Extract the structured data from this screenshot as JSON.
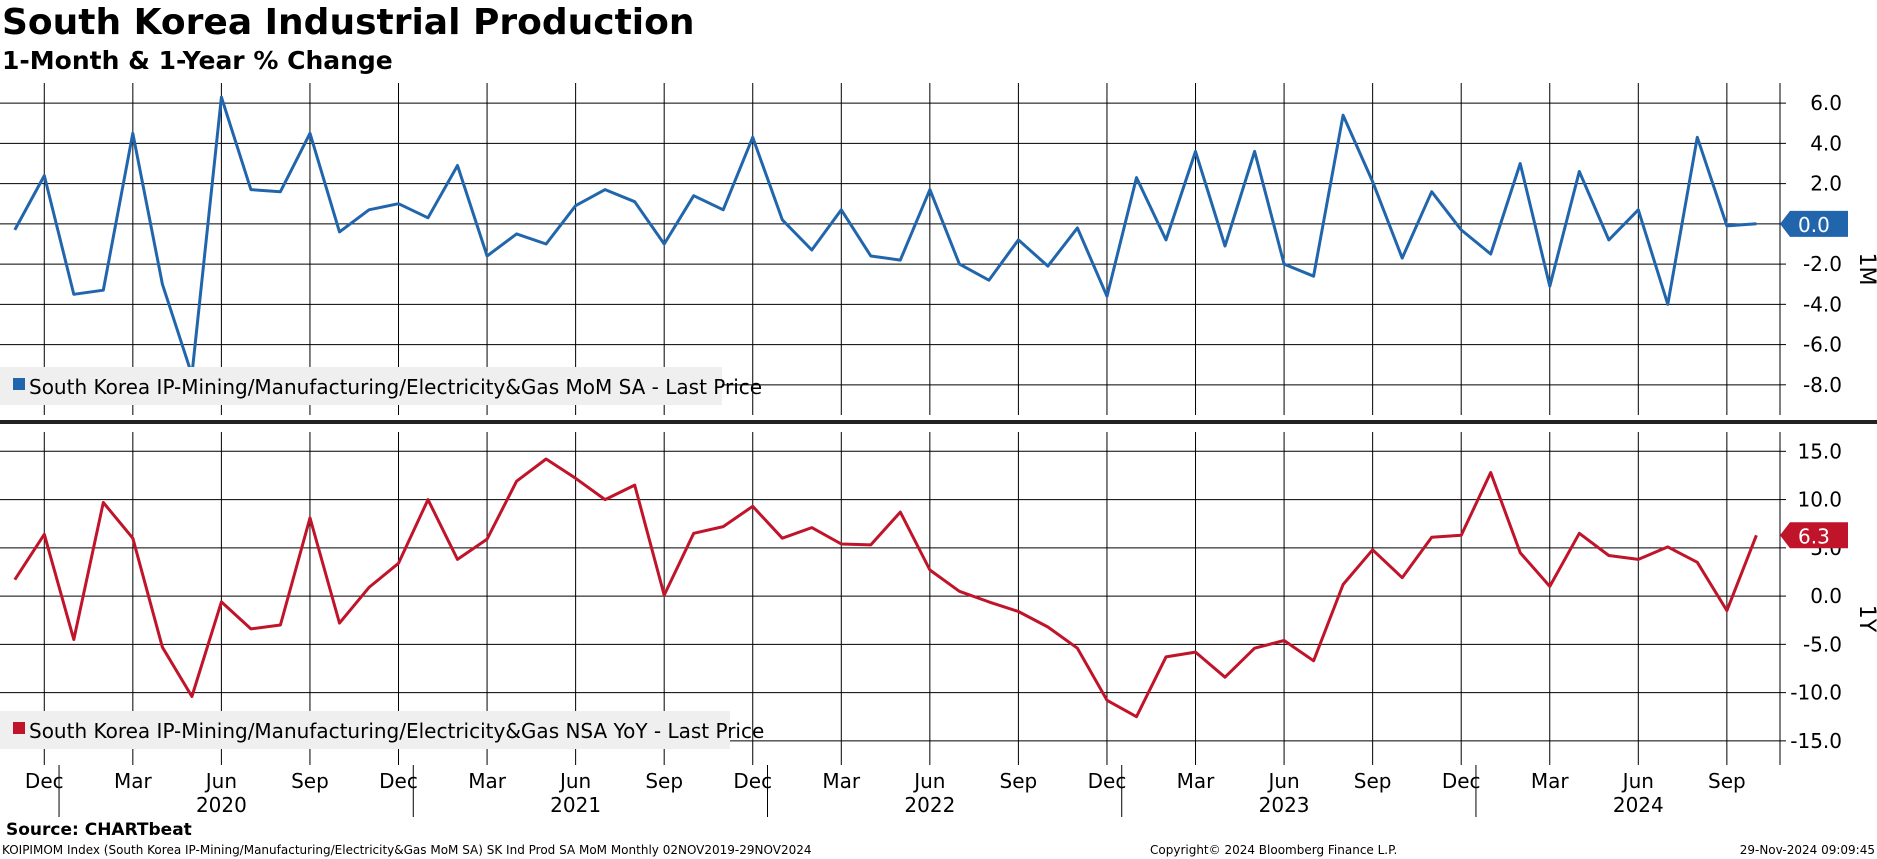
{
  "header": {
    "title": "South Korea Industrial Production",
    "subtitle": "1-Month & 1-Year % Change"
  },
  "footer": {
    "source": "Source: CHARTbeat",
    "index_info": "KOIPIMOM Index (South Korea IP-Mining/Manufacturing/Electricity&Gas MoM SA) SK Ind Prod SA MoM  Monthly 02NOV2019-29NOV2024",
    "copyright": "Copyright© 2024 Bloomberg Finance L.P.",
    "timestamp": "29-Nov-2024 09:09:45"
  },
  "colors": {
    "mom": "#2166ac",
    "yoy": "#c0142b",
    "grid": "#000000"
  },
  "chart_data": [
    {
      "type": "line",
      "panel": "top",
      "axis_label": "1M",
      "legend": "South Korea IP-Mining/Manufacturing/Electricity&Gas MoM SA - Last Price",
      "last_value_label": "0.0",
      "ylim": [
        -9.5,
        7.0
      ],
      "y_ticks": [
        6.0,
        4.0,
        2.0,
        0.0,
        -2.0,
        -4.0,
        -6.0,
        -8.0
      ],
      "y_tick_labels": [
        "6.0",
        "4.0",
        "2.0",
        "0.0",
        "-2.0",
        "-4.0",
        "-6.0",
        "-8.0"
      ],
      "x_start": "2019-11",
      "values": [
        -0.3,
        2.4,
        -3.5,
        -3.3,
        4.5,
        -3.0,
        -7.5,
        6.3,
        1.7,
        1.6,
        4.5,
        -0.4,
        0.7,
        1.0,
        0.3,
        2.9,
        -1.6,
        -0.5,
        -1.0,
        0.9,
        1.7,
        1.1,
        -1.0,
        1.4,
        0.7,
        4.3,
        0.2,
        -1.3,
        0.7,
        -1.6,
        -1.8,
        1.7,
        -2.0,
        -2.8,
        -0.8,
        -2.1,
        -0.2,
        -3.6,
        2.3,
        -0.8,
        3.6,
        -1.1,
        3.6,
        -2.0,
        -2.6,
        5.4,
        2.1,
        -1.7,
        1.6,
        -0.3,
        -1.5,
        3.0,
        -3.1,
        2.6,
        -0.8,
        0.7,
        -4.0,
        4.3,
        -0.1,
        0.0
      ]
    },
    {
      "type": "line",
      "panel": "bottom",
      "axis_label": "1Y",
      "legend": "South Korea IP-Mining/Manufacturing/Electricity&Gas NSA YoY - Last Price",
      "last_value_label": "6.3",
      "ylim": [
        -17.5,
        17.0
      ],
      "y_ticks": [
        15.0,
        10.0,
        5.0,
        0.0,
        -5.0,
        -10.0,
        -15.0
      ],
      "y_tick_labels": [
        "15.0",
        "10.0",
        "5.0",
        "0.0",
        "-5.0",
        "-10.0",
        "-15.0"
      ],
      "x_start": "2019-11",
      "values": [
        1.7,
        6.4,
        -4.5,
        9.7,
        6.0,
        -5.3,
        -10.4,
        -0.6,
        -3.4,
        -3.0,
        8.1,
        -2.8,
        0.9,
        3.4,
        10.0,
        3.8,
        5.9,
        11.9,
        14.2,
        12.2,
        10.0,
        11.5,
        0.1,
        6.5,
        7.2,
        9.3,
        6.0,
        7.1,
        5.4,
        5.3,
        8.7,
        2.7,
        0.5,
        -0.6,
        -1.6,
        -3.2,
        -5.4,
        -10.8,
        -12.5,
        -6.3,
        -5.8,
        -8.4,
        -5.4,
        -4.6,
        -6.7,
        1.2,
        4.8,
        1.9,
        6.1,
        6.3,
        12.8,
        4.5,
        1.0,
        6.5,
        4.2,
        3.8,
        5.1,
        3.5,
        -1.5,
        6.3
      ]
    }
  ],
  "x_axis": {
    "month_ticks": [
      {
        "label": "Dec",
        "index": 1
      },
      {
        "label": "Mar",
        "index": 4
      },
      {
        "label": "Jun",
        "index": 7
      },
      {
        "label": "Sep",
        "index": 10
      },
      {
        "label": "Dec",
        "index": 13
      },
      {
        "label": "Mar",
        "index": 16
      },
      {
        "label": "Jun",
        "index": 19
      },
      {
        "label": "Sep",
        "index": 22
      },
      {
        "label": "Dec",
        "index": 25
      },
      {
        "label": "Mar",
        "index": 28
      },
      {
        "label": "Jun",
        "index": 31
      },
      {
        "label": "Sep",
        "index": 34
      },
      {
        "label": "Dec",
        "index": 37
      },
      {
        "label": "Mar",
        "index": 40
      },
      {
        "label": "Jun",
        "index": 43
      },
      {
        "label": "Sep",
        "index": 46
      },
      {
        "label": "Dec",
        "index": 49
      },
      {
        "label": "Mar",
        "index": 52
      },
      {
        "label": "Jun",
        "index": 55
      },
      {
        "label": "Sep",
        "index": 58
      }
    ],
    "year_labels": [
      {
        "label": "2020",
        "index": 7
      },
      {
        "label": "2021",
        "index": 19
      },
      {
        "label": "2022",
        "index": 31
      },
      {
        "label": "2023",
        "index": 43
      },
      {
        "label": "2024",
        "index": 55
      }
    ],
    "year_separators": [
      1.5,
      13.5,
      25.5,
      37.5,
      49.5
    ]
  }
}
